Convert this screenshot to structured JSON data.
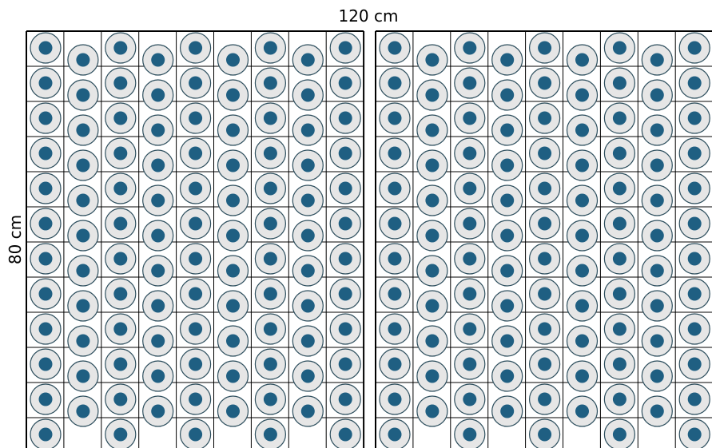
{
  "labels": {
    "width": "120 cm",
    "height": "80 cm"
  }
}
